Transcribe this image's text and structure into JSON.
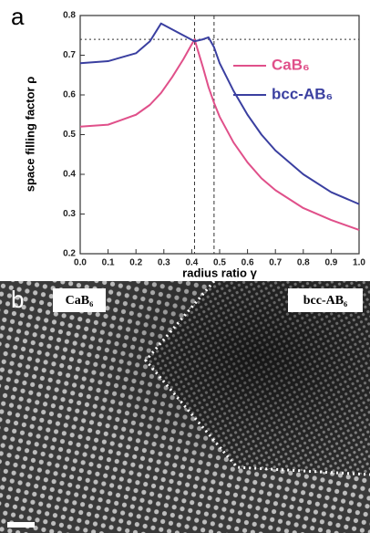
{
  "panel_a_label": "a",
  "chart_data": {
    "type": "line",
    "xlabel": "radius ratio γ",
    "ylabel": "space filling factor ρ",
    "x": [
      0,
      0.1,
      0.2,
      0.25,
      0.29,
      0.33,
      0.37,
      0.41,
      0.44,
      0.46,
      0.48,
      0.5,
      0.55,
      0.6,
      0.65,
      0.7,
      0.8,
      0.9,
      1.0
    ],
    "series": [
      {
        "name": "CaB₆",
        "color": "#e0508a",
        "values": [
          0.52,
          0.525,
          0.55,
          0.575,
          0.605,
          0.645,
          0.69,
          0.74,
          0.67,
          0.62,
          0.58,
          0.545,
          0.48,
          0.43,
          0.39,
          0.36,
          0.315,
          0.285,
          0.26
        ]
      },
      {
        "name": "bcc-AB₆",
        "color": "#3a3fa0",
        "values": [
          0.68,
          0.685,
          0.705,
          0.735,
          0.78,
          0.765,
          0.75,
          0.735,
          0.74,
          0.745,
          0.72,
          0.68,
          0.61,
          0.55,
          0.5,
          0.46,
          0.4,
          0.355,
          0.325
        ]
      }
    ],
    "vlines": [
      0.41,
      0.48
    ],
    "hline": 0.74,
    "xlim": [
      0,
      1.0
    ],
    "ylim": [
      0.2,
      0.8
    ],
    "xticks": [
      {
        "value": 0,
        "label": "0.0"
      },
      0.1,
      0.2,
      0.3,
      0.4,
      0.5,
      0.6,
      0.7,
      0.8,
      0.9,
      {
        "value": 1.0,
        "label": "1.0"
      }
    ],
    "yticks": [
      0.2,
      0.3,
      0.4,
      0.5,
      0.6,
      0.7,
      0.8
    ]
  },
  "image": {
    "label": "b",
    "left_label": "CaB₆",
    "right_label": "bcc-AB₆"
  }
}
